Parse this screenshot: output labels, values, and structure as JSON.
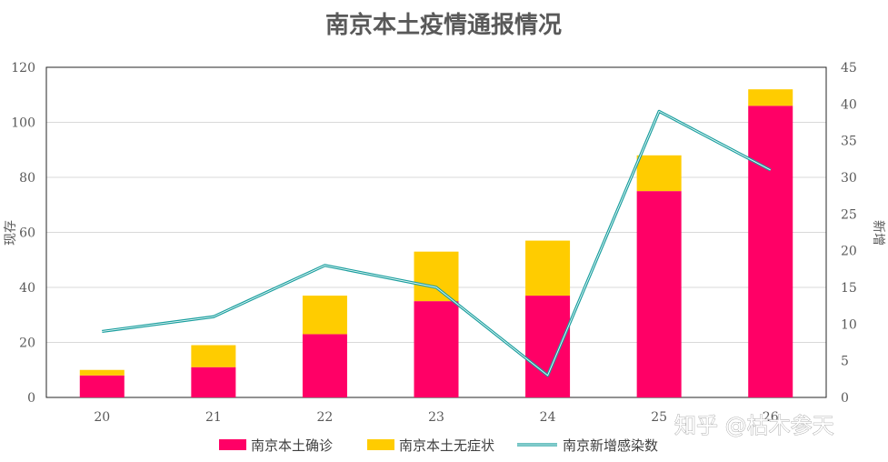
{
  "chart_data": {
    "type": "bar",
    "title": "南京本土疫情通报情况",
    "categories": [
      "20",
      "21",
      "22",
      "23",
      "24",
      "25",
      "26"
    ],
    "series": [
      {
        "name": "南京本土确诊",
        "kind": "stacked-bar",
        "axis": "left",
        "color": "#ff0066",
        "values": [
          8,
          11,
          23,
          35,
          37,
          75,
          106
        ]
      },
      {
        "name": "南京本土无症状",
        "kind": "stacked-bar",
        "axis": "left",
        "color": "#ffcc00",
        "values": [
          2,
          8,
          14,
          18,
          20,
          13,
          6
        ]
      },
      {
        "name": "南京新增感染数",
        "kind": "line",
        "axis": "right",
        "color": "#1a9e9e",
        "values": [
          9,
          11,
          18,
          15,
          3,
          39,
          31
        ]
      }
    ],
    "ylabel": "现存",
    "ylabel_right": "新增",
    "ylim": [
      0,
      120
    ],
    "ylim_right": [
      0,
      45
    ],
    "yticks": [
      "0",
      "20",
      "40",
      "60",
      "80",
      "100",
      "120"
    ],
    "yticks_right": [
      "0",
      "5",
      "10",
      "15",
      "20",
      "25",
      "30",
      "35",
      "40",
      "45"
    ],
    "grid": true,
    "legend": "bottom"
  },
  "watermark": "知乎 @枯木参天"
}
